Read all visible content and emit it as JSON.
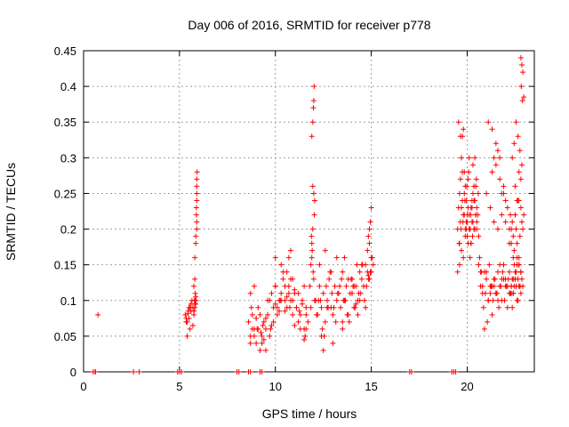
{
  "chart_data": {
    "type": "scatter",
    "title": "Day 006 of 2016, SRMTID for receiver p778",
    "xlabel": "GPS time / hours",
    "ylabel": "SRMTID / TECUs",
    "xlim": [
      0,
      23.5
    ],
    "ylim": [
      0,
      0.45
    ],
    "xticks": [
      0,
      5,
      10,
      15,
      20
    ],
    "xtick_labels": [
      "0",
      "5",
      "10",
      "15",
      "20"
    ],
    "yticks": [
      0,
      0.05,
      0.1,
      0.15,
      0.2,
      0.25,
      0.3,
      0.35,
      0.4,
      0.45
    ],
    "ytick_labels": [
      "0",
      "0.05",
      "0.1",
      "0.15",
      "0.2",
      "0.25",
      "0.3",
      "0.35",
      "0.4",
      "0.45"
    ],
    "grid": true,
    "marker": "+",
    "color": "#ff0000",
    "series": [
      {
        "name": "SRMTID",
        "x": [
          0.5,
          0.6,
          0.62,
          2.6,
          2.9,
          4.9,
          5.0,
          5.1,
          8.0,
          8.1,
          8.6,
          8.7,
          9.2,
          9.3,
          17.0,
          17.1,
          19.2,
          19.3,
          19.4,
          0.75,
          5.3,
          5.35,
          5.4,
          5.45,
          5.5,
          5.55,
          5.6,
          5.65,
          5.7,
          5.75,
          5.8,
          5.85,
          5.4,
          5.5,
          5.6,
          5.7,
          5.8,
          5.35,
          5.45,
          5.55,
          5.9,
          5.9,
          5.9,
          5.9,
          5.92,
          5.88,
          5.9,
          5.9,
          5.85,
          5.85,
          5.8,
          5.8,
          5.75,
          5.82,
          5.86,
          5.78,
          5.84,
          5.8,
          5.76,
          5.88,
          8.6,
          8.7,
          8.8,
          8.9,
          9.0,
          9.1,
          9.2,
          9.3,
          9.4,
          9.5,
          9.6,
          9.7,
          9.8,
          9.9,
          10.0,
          10.1,
          10.2,
          10.3,
          10.4,
          10.5,
          10.6,
          10.7,
          10.8,
          10.9,
          11.0,
          11.1,
          11.2,
          11.3,
          11.4,
          11.5,
          11.6,
          11.7,
          8.7,
          8.9,
          9.1,
          9.3,
          9.5,
          9.7,
          9.9,
          10.1,
          10.3,
          10.5,
          10.7,
          10.9,
          11.1,
          11.3,
          11.5,
          8.8,
          9.2,
          9.6,
          10.0,
          10.4,
          10.8,
          11.2,
          11.6,
          9.4,
          9.8,
          10.2,
          10.6,
          11.0,
          11.4,
          9.0,
          9.5,
          10.0,
          10.5,
          11.0,
          8.75,
          9.25,
          9.75,
          10.25,
          10.75,
          11.25,
          11.6,
          10.0,
          10.3,
          10.6,
          10.9,
          10.7,
          10.8,
          8.7,
          8.9,
          9.05,
          9.35,
          11.5,
          11.55,
          11.8,
          11.85,
          11.9,
          11.95,
          12.0,
          12.05,
          11.9,
          11.95,
          12.0,
          12.02,
          11.98,
          11.92,
          11.97,
          12.03,
          11.88,
          11.95,
          11.9,
          12.0,
          11.85,
          12.05,
          12.1,
          12.2,
          12.3,
          12.4,
          12.5,
          12.6,
          12.7,
          12.8,
          12.9,
          13.0,
          13.1,
          13.2,
          13.3,
          13.4,
          13.5,
          13.6,
          13.7,
          13.8,
          13.9,
          14.0,
          14.1,
          14.2,
          14.3,
          14.4,
          14.5,
          14.6,
          14.7,
          14.8,
          14.9,
          15.0,
          15.1,
          12.15,
          12.35,
          12.55,
          12.75,
          12.95,
          13.15,
          13.35,
          13.55,
          13.75,
          13.95,
          14.15,
          14.35,
          14.55,
          14.75,
          14.95,
          12.25,
          12.45,
          12.65,
          12.85,
          13.05,
          13.25,
          13.45,
          13.65,
          13.85,
          14.05,
          14.25,
          14.45,
          14.65,
          14.85,
          15.05,
          12.3,
          12.6,
          12.9,
          13.2,
          13.5,
          13.8,
          14.1,
          14.4,
          14.7,
          15.0,
          12.5,
          13.0,
          13.5,
          14.0,
          14.5,
          12.7,
          13.6,
          14.3,
          14.8,
          14.85,
          14.9,
          14.95,
          15.0,
          14.9,
          14.95,
          14.85,
          12.4,
          14.2,
          19.5,
          19.55,
          19.6,
          19.65,
          19.7,
          19.75,
          19.8,
          19.85,
          19.9,
          19.95,
          20.0,
          20.05,
          20.1,
          20.15,
          20.2,
          20.25,
          20.3,
          20.35,
          20.4,
          20.45,
          20.5,
          20.55,
          20.6,
          19.6,
          19.7,
          19.8,
          19.9,
          20.0,
          20.1,
          20.2,
          20.3,
          20.4,
          20.5,
          19.55,
          19.65,
          19.75,
          19.85,
          19.95,
          20.05,
          20.15,
          20.25,
          20.35,
          20.45,
          19.5,
          19.58,
          19.68,
          19.78,
          19.88,
          19.98,
          20.08,
          20.18,
          20.28,
          20.38,
          20.48,
          20.58,
          19.6,
          19.65,
          19.7,
          19.75,
          19.8,
          19.85,
          19.9,
          19.95,
          20.0,
          20.05,
          20.1,
          20.15,
          20.2,
          20.25,
          20.3,
          20.35,
          20.4,
          20.45,
          20.5,
          20.6,
          20.7,
          20.8,
          20.9,
          21.0,
          21.1,
          21.2,
          21.3,
          21.4,
          21.5,
          21.6,
          21.7,
          21.8,
          21.9,
          22.0,
          22.1,
          22.2,
          22.3,
          22.4,
          22.5,
          22.6,
          22.7,
          22.8,
          20.65,
          20.75,
          20.85,
          20.95,
          21.05,
          21.15,
          21.25,
          21.35,
          21.45,
          21.55,
          21.65,
          21.75,
          21.85,
          21.95,
          22.05,
          22.15,
          22.25,
          22.35,
          22.45,
          22.55,
          22.65,
          22.75,
          20.7,
          20.9,
          21.1,
          21.3,
          21.5,
          21.7,
          21.9,
          22.1,
          22.3,
          22.5,
          22.7,
          20.8,
          21.0,
          21.2,
          21.4,
          21.6,
          21.8,
          22.0,
          22.2,
          22.4,
          22.6,
          22.8,
          21.0,
          21.2,
          21.4,
          21.6,
          21.8,
          22.0,
          22.2,
          22.4,
          22.6,
          22.8,
          21.1,
          21.3,
          21.5,
          21.7,
          21.9,
          22.1,
          22.3,
          22.5,
          22.7,
          21.3,
          21.4,
          21.5,
          21.6,
          21.7,
          21.8,
          21.9,
          22.0,
          22.3,
          22.35,
          22.4,
          22.45,
          22.5,
          22.55,
          22.6,
          22.65,
          22.7,
          22.75,
          22.8,
          22.85,
          22.9,
          22.35,
          22.45,
          22.55,
          22.65,
          22.75,
          22.85,
          22.5,
          22.6,
          22.7,
          22.8,
          22.2,
          22.25,
          22.3,
          22.35,
          22.4,
          22.45,
          22.5,
          22.55,
          22.6,
          22.65,
          22.7,
          22.75,
          22.8,
          22.85,
          22.9,
          22.95,
          22.8,
          22.85,
          22.9,
          22.95,
          22.88,
          22.82
        ],
        "y": [
          0,
          0,
          0,
          0,
          0,
          0,
          0,
          0,
          0,
          0,
          0,
          0,
          0,
          0,
          0,
          0,
          0,
          0,
          0,
          0.08,
          0.08,
          0.075,
          0.07,
          0.085,
          0.09,
          0.06,
          0.095,
          0.1,
          0.065,
          0.08,
          0.1,
          0.105,
          0.05,
          0.075,
          0.085,
          0.09,
          0.095,
          0.07,
          0.082,
          0.09,
          0.27,
          0.26,
          0.25,
          0.24,
          0.28,
          0.22,
          0.21,
          0.2,
          0.19,
          0.18,
          0.16,
          0.13,
          0.12,
          0.11,
          0.1,
          0.1,
          0.095,
          0.09,
          0.085,
          0.23,
          0.07,
          0.05,
          0.08,
          0.06,
          0.04,
          0.09,
          0.03,
          0.05,
          0.07,
          0.06,
          0.08,
          0.1,
          0.11,
          0.09,
          0.12,
          0.08,
          0.1,
          0.11,
          0.13,
          0.1,
          0.09,
          0.12,
          0.1,
          0.08,
          0.11,
          0.09,
          0.07,
          0.06,
          0.1,
          0.12,
          0.08,
          0.07,
          0.04,
          0.05,
          0.06,
          0.04,
          0.03,
          0.05,
          0.07,
          0.09,
          0.1,
          0.12,
          0.11,
          0.1,
          0.09,
          0.08,
          0.06,
          0.06,
          0.08,
          0.1,
          0.12,
          0.14,
          0.13,
          0.11,
          0.09,
          0.045,
          0.065,
          0.085,
          0.105,
          0.115,
          0.095,
          0.075,
          0.075,
          0.095,
          0.085,
          0.065,
          0.09,
          0.055,
          0.06,
          0.1,
          0.09,
          0.085,
          0.06,
          0.16,
          0.15,
          0.14,
          0.13,
          0.16,
          0.17,
          0.11,
          0.12,
          0.06,
          0.065,
          0.045,
          0.05,
          0.12,
          0.15,
          0.18,
          0.2,
          0.25,
          0.24,
          0.33,
          0.35,
          0.38,
          0.4,
          0.37,
          0.17,
          0.14,
          0.22,
          0.19,
          0.26,
          0.16,
          0.13,
          0.09,
          0.1,
          0.1,
          0.08,
          0.12,
          0.09,
          0.11,
          0.07,
          0.1,
          0.13,
          0.09,
          0.08,
          0.12,
          0.1,
          0.11,
          0.09,
          0.14,
          0.1,
          0.12,
          0.08,
          0.11,
          0.13,
          0.09,
          0.12,
          0.1,
          0.14,
          0.13,
          0.12,
          0.15,
          0.14,
          0.13,
          0.16,
          0.15,
          0.08,
          0.1,
          0.05,
          0.09,
          0.11,
          0.07,
          0.12,
          0.1,
          0.08,
          0.13,
          0.09,
          0.11,
          0.15,
          0.12,
          0.14,
          0.1,
          0.06,
          0.12,
          0.14,
          0.09,
          0.11,
          0.13,
          0.1,
          0.07,
          0.12,
          0.15,
          0.11,
          0.1,
          0.13,
          0.16,
          0.15,
          0.17,
          0.14,
          0.16,
          0.07,
          0.13,
          0.12,
          0.1,
          0.09,
          0.14,
          0.03,
          0.04,
          0.06,
          0.11,
          0.15,
          0.09,
          0.16,
          0.08,
          0.17,
          0.19,
          0.2,
          0.21,
          0.23,
          0.18,
          0.14,
          0.135,
          0.05,
          0.095,
          0.2,
          0.23,
          0.25,
          0.27,
          0.3,
          0.33,
          0.34,
          0.28,
          0.26,
          0.24,
          0.22,
          0.27,
          0.3,
          0.2,
          0.23,
          0.21,
          0.29,
          0.26,
          0.24,
          0.22,
          0.2,
          0.22,
          0.19,
          0.18,
          0.17,
          0.16,
          0.19,
          0.21,
          0.2,
          0.18,
          0.25,
          0.3,
          0.23,
          0.35,
          0.33,
          0.28,
          0.22,
          0.2,
          0.18,
          0.16,
          0.24,
          0.2,
          0.26,
          0.14,
          0.18,
          0.2,
          0.21,
          0.24,
          0.26,
          0.28,
          0.22,
          0.19,
          0.24,
          0.27,
          0.25,
          0.15,
          0.21,
          0.23,
          0.24,
          0.22,
          0.25,
          0.2,
          0.21,
          0.19,
          0.23,
          0.22,
          0.2,
          0.18,
          0.23,
          0.21,
          0.24,
          0.2,
          0.22,
          0.21,
          0.15,
          0.12,
          0.11,
          0.14,
          0.13,
          0.1,
          0.12,
          0.08,
          0.13,
          0.11,
          0.14,
          0.12,
          0.1,
          0.15,
          0.13,
          0.09,
          0.14,
          0.12,
          0.11,
          0.13,
          0.1,
          0.12,
          0.11,
          0.16,
          0.14,
          0.09,
          0.11,
          0.07,
          0.15,
          0.12,
          0.1,
          0.13,
          0.11,
          0.09,
          0.12,
          0.14,
          0.1,
          0.12,
          0.13,
          0.11,
          0.09,
          0.12,
          0.14,
          0.1,
          0.12,
          0.14,
          0.06,
          0.1,
          0.12,
          0.11,
          0.15,
          0.13,
          0.12,
          0.11,
          0.13,
          0.15,
          0.12,
          0.14,
          0.11,
          0.12,
          0.1,
          0.13,
          0.12,
          0.11,
          0.13,
          0.15,
          0.14,
          0.25,
          0.23,
          0.21,
          0.2,
          0.22,
          0.24,
          0.18,
          0.16,
          0.15,
          0.14,
          0.35,
          0.34,
          0.29,
          0.27,
          0.25,
          0.23,
          0.2,
          0.22,
          0.24,
          0.28,
          0.3,
          0.32,
          0.31,
          0.3,
          0.25,
          0.26,
          0.21,
          0.12,
          0.13,
          0.11,
          0.15,
          0.14,
          0.12,
          0.16,
          0.13,
          0.15,
          0.12,
          0.14,
          0.13,
          0.12,
          0.3,
          0.32,
          0.35,
          0.33,
          0.31,
          0.29,
          0.26,
          0.24,
          0.28,
          0.27,
          0.2,
          0.22,
          0.18,
          0.21,
          0.19,
          0.17,
          0.22,
          0.2,
          0.18,
          0.24,
          0.16,
          0.19,
          0.23,
          0.21,
          0.2,
          0.22,
          0.44,
          0.43,
          0.42,
          0.385,
          0.38,
          0.4
        ]
      }
    ]
  }
}
